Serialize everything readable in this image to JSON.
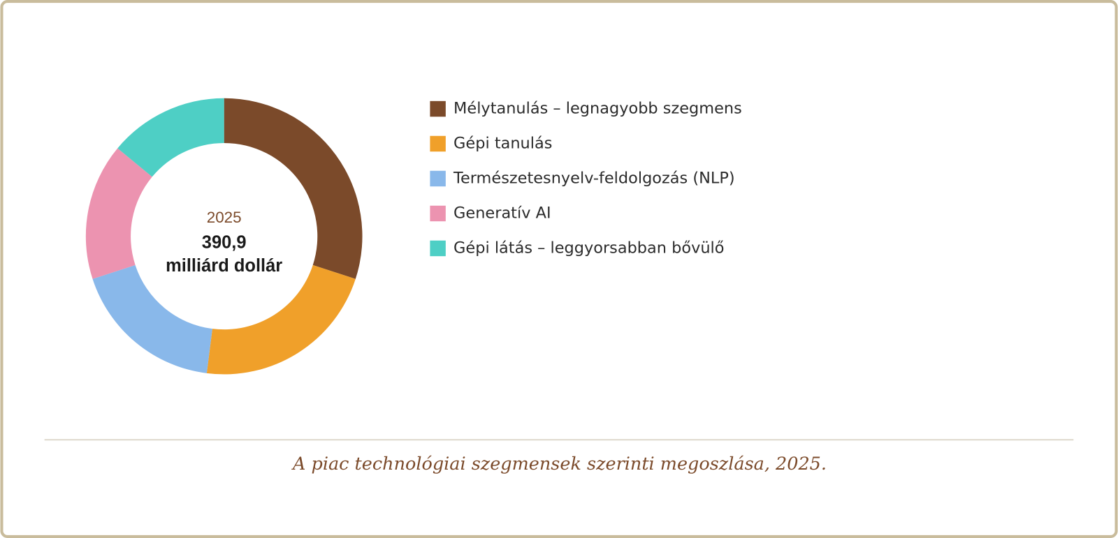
{
  "chart_data": {
    "type": "donut",
    "center_year": "2025",
    "center_value": "390,9",
    "center_unit": "milliárd dollár",
    "categories": [
      "Mélytanulás – legnagyobb szegmens",
      "Gépi tanulás",
      "Természetesnyelv-feldolgozás (NLP)",
      "Generatív AI",
      "Gépi látás – leggyorsabban bővülő"
    ],
    "values": [
      30,
      22,
      18,
      16,
      14
    ],
    "colors": [
      "#7b4a2a",
      "#f0a02a",
      "#89b8ea",
      "#ec93b0",
      "#4ecfc5"
    ],
    "caption": "A piac technológiai szegmensek szerinti megoszlása, 2025."
  }
}
